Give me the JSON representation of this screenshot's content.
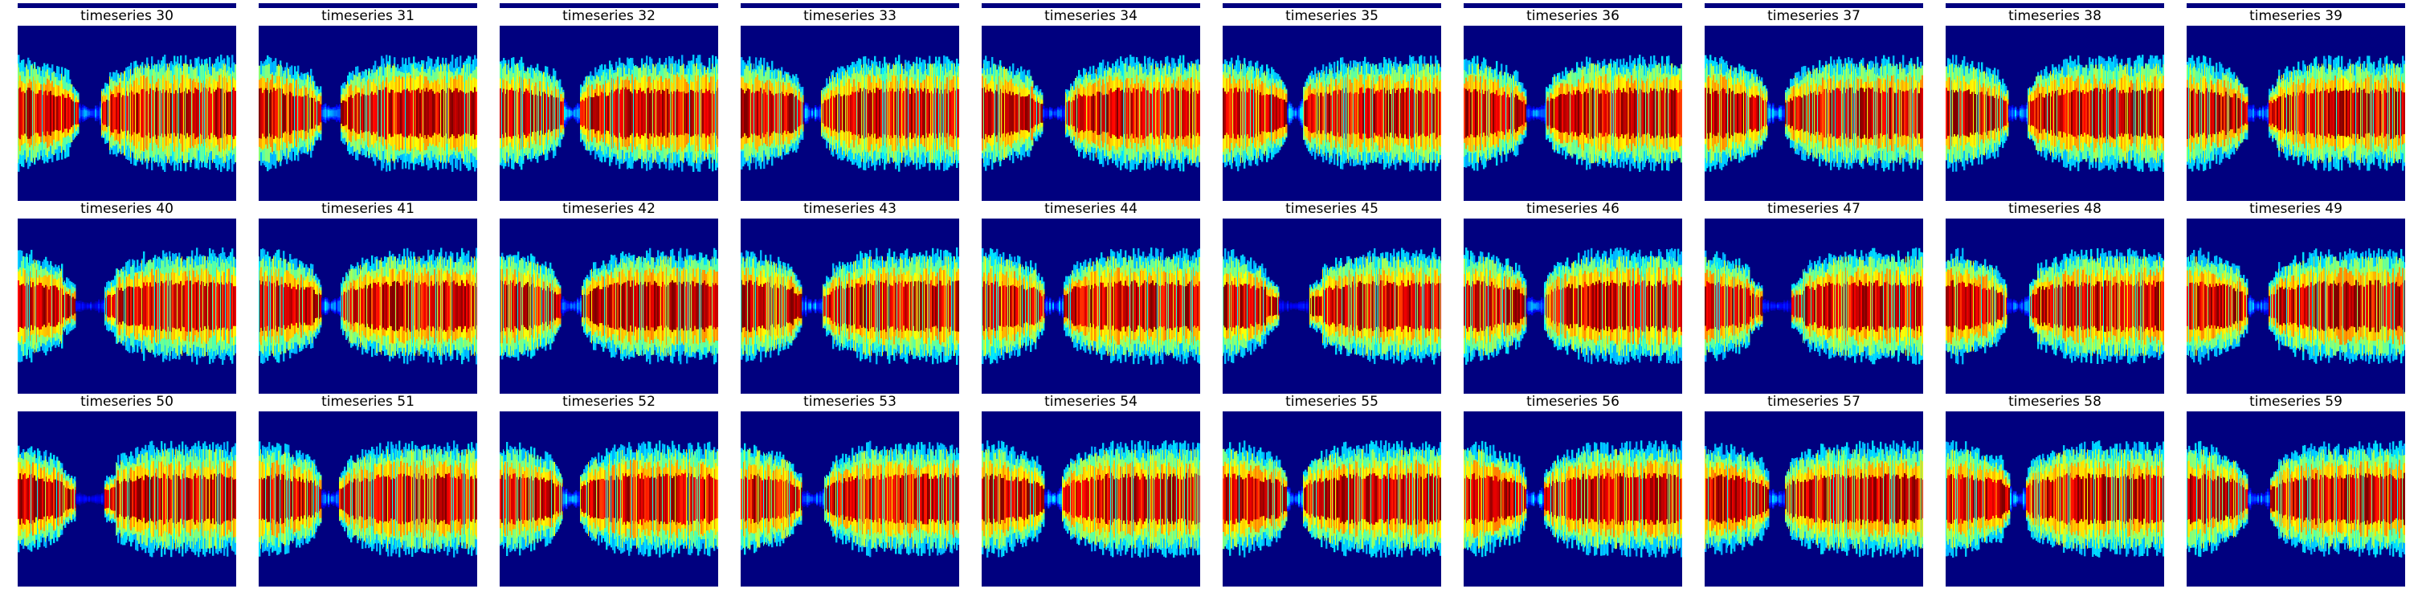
{
  "chart_data": {
    "type": "heatmap",
    "layout": {
      "rows": 3,
      "cols": 10
    },
    "colormap": "jet",
    "background_color": "#00007f",
    "panels": [
      {
        "title": "timeseries 30",
        "gap_size": 0.35
      },
      {
        "title": "timeseries 31",
        "gap_size": 0.25
      },
      {
        "title": "timeseries 32",
        "gap_size": 0.15
      },
      {
        "title": "timeseries 33",
        "gap_size": 0.2
      },
      {
        "title": "timeseries 34",
        "gap_size": 0.4
      },
      {
        "title": "timeseries 35",
        "gap_size": 0.1
      },
      {
        "title": "timeseries 36",
        "gap_size": 0.25
      },
      {
        "title": "timeseries 37",
        "gap_size": 0.2
      },
      {
        "title": "timeseries 38",
        "gap_size": 0.25
      },
      {
        "title": "timeseries 39",
        "gap_size": 0.3
      },
      {
        "title": "timeseries 40",
        "gap_size": 0.6
      },
      {
        "title": "timeseries 41",
        "gap_size": 0.25
      },
      {
        "title": "timeseries 42",
        "gap_size": 0.3
      },
      {
        "title": "timeseries 43",
        "gap_size": 0.3
      },
      {
        "title": "timeseries 44",
        "gap_size": 0.25
      },
      {
        "title": "timeseries 45",
        "gap_size": 0.65
      },
      {
        "title": "timeseries 46",
        "gap_size": 0.2
      },
      {
        "title": "timeseries 47",
        "gap_size": 0.6
      },
      {
        "title": "timeseries 48",
        "gap_size": 0.35
      },
      {
        "title": "timeseries 49",
        "gap_size": 0.3
      },
      {
        "title": "timeseries 50",
        "gap_size": 0.6
      },
      {
        "title": "timeseries 51",
        "gap_size": 0.2
      },
      {
        "title": "timeseries 52",
        "gap_size": 0.2
      },
      {
        "title": "timeseries 53",
        "gap_size": 0.35
      },
      {
        "title": "timeseries 54",
        "gap_size": 0.2
      },
      {
        "title": "timeseries 55",
        "gap_size": 0.15
      },
      {
        "title": "timeseries 56",
        "gap_size": 0.2
      },
      {
        "title": "timeseries 57",
        "gap_size": 0.15
      },
      {
        "title": "timeseries 58",
        "gap_size": 0.15
      },
      {
        "title": "timeseries 59",
        "gap_size": 0.35
      }
    ]
  }
}
